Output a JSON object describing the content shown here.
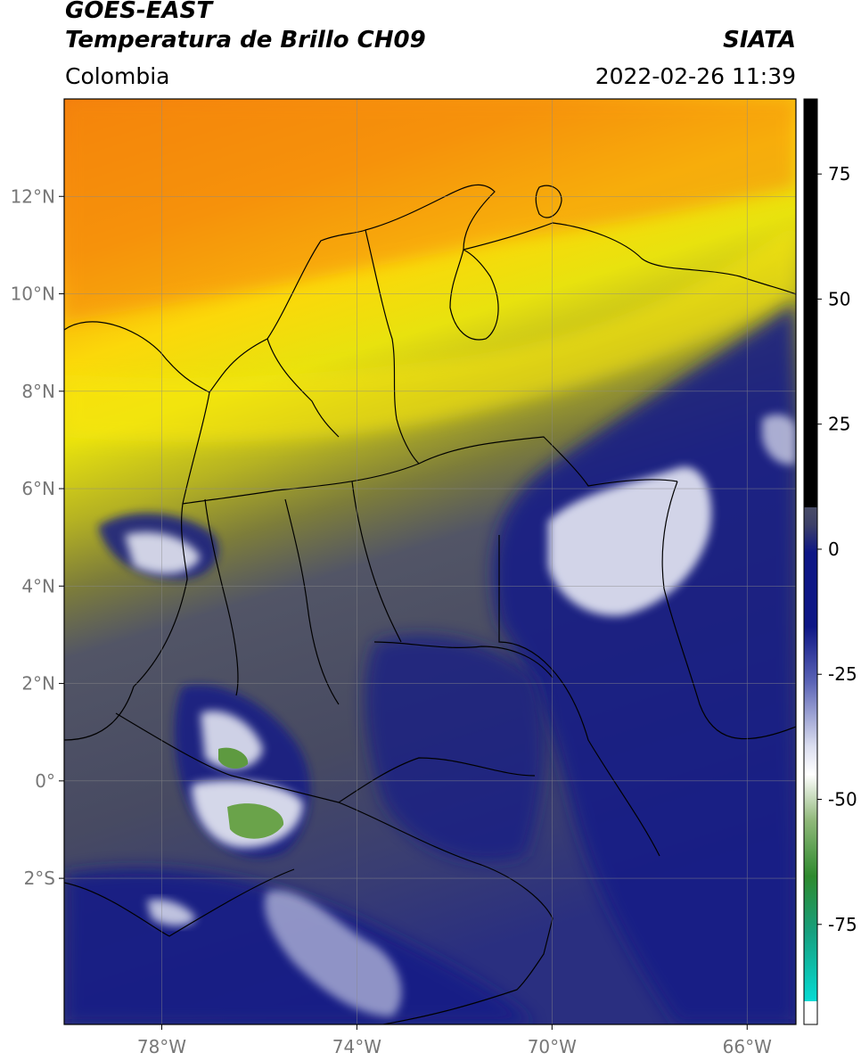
{
  "header": {
    "satellite": "GOES-EAST",
    "product": "Temperatura de Brillo CH09",
    "brand": "SIATA",
    "region": "Colombia",
    "datetime": "2022-02-26 11:39"
  },
  "map": {
    "lon_range": [
      -80,
      -65
    ],
    "lat_range": [
      -5,
      14
    ],
    "lon_ticks": [
      -78,
      -74,
      -70,
      -66
    ],
    "lon_tick_labels": [
      "78°W",
      "74°W",
      "70°W",
      "66°W"
    ],
    "lat_ticks": [
      12,
      10,
      8,
      6,
      4,
      2,
      0,
      -2
    ],
    "lat_tick_labels": [
      "12°N",
      "10°N",
      "8°N",
      "6°N",
      "4°N",
      "2°N",
      "0°",
      "2°S"
    ],
    "gridlines": true,
    "colors": {
      "warm": "#f58a0a",
      "yellow": "#f8e90a",
      "olive": "#9c9c2a",
      "gray": "#4e5060",
      "navy": "#131a85",
      "white": "#f2f4f8",
      "green": "#5a9a3e",
      "border": "#000000"
    }
  },
  "colorbar": {
    "range": [
      -95,
      90
    ],
    "ticks": [
      75,
      50,
      25,
      0,
      -25,
      -50,
      -75
    ],
    "tick_labels": [
      "75",
      "50",
      "25",
      "0",
      "-25",
      "-50",
      "-75"
    ]
  }
}
